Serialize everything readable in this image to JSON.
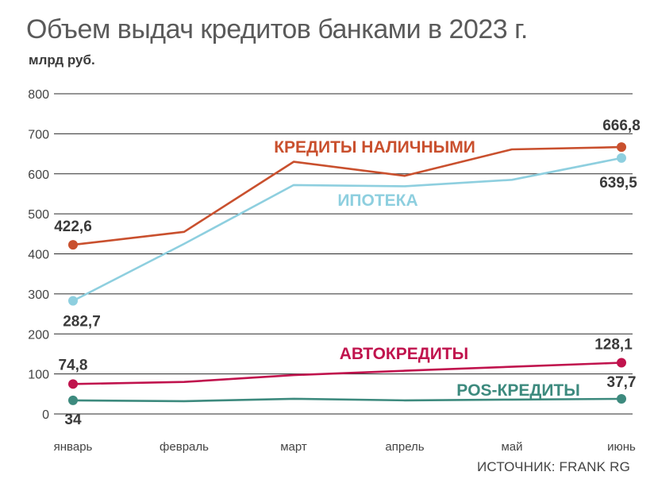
{
  "header": {
    "title": "Объем выдач кредитов банками в 2023 г.",
    "unit": "млрд руб."
  },
  "source": "ИСТОЧНИК: FRANK RG",
  "chart_data": {
    "type": "line",
    "title": "Объем выдач кредитов банками в 2023 г.",
    "ylabel": "млрд руб.",
    "ylim": [
      0,
      800
    ],
    "yticks": [
      0,
      100,
      200,
      300,
      400,
      500,
      600,
      700,
      800
    ],
    "grid": true,
    "legend": "inline labels",
    "categories": [
      "январь",
      "февраль",
      "март",
      "апрель",
      "май",
      "июнь"
    ],
    "series": [
      {
        "name": "КРЕДИТЫ НАЛИЧНЫМИ",
        "color": "#c9502e",
        "values": [
          422.6,
          455,
          630,
          595,
          661,
          666.8
        ],
        "labels": {
          "first": "422,6",
          "last": "666,8"
        }
      },
      {
        "name": "ИПОТЕКА",
        "color": "#8ecfdf",
        "values": [
          282.7,
          425,
          572,
          569,
          585,
          639.5
        ],
        "labels": {
          "first": "282,7",
          "last": "639,5"
        }
      },
      {
        "name": "АВТОКРЕДИТЫ",
        "color": "#c0134d",
        "values": [
          74.8,
          80,
          97,
          108,
          118,
          128.1
        ],
        "labels": {
          "first": "74,8",
          "last": "128,1"
        }
      },
      {
        "name": "POS-КРЕДИТЫ",
        "color": "#3d8a7e",
        "values": [
          34,
          32,
          38,
          34,
          36,
          37.7
        ],
        "labels": {
          "first": "34",
          "last": "37,7"
        }
      }
    ]
  }
}
